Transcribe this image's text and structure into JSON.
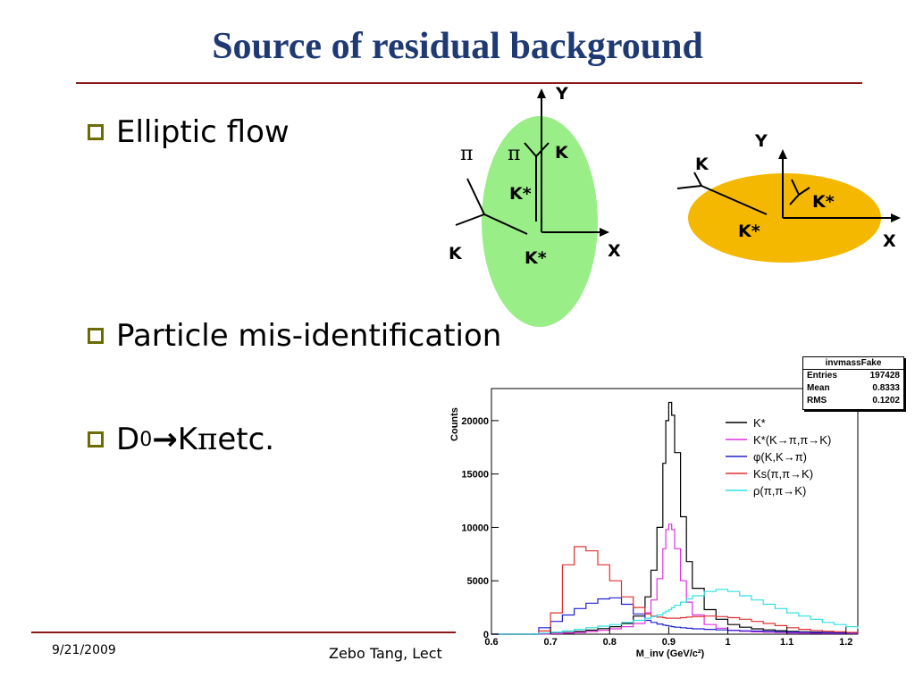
{
  "slide": {
    "title": "Source of residual background",
    "bullets": [
      {
        "text": "Elliptic flow"
      },
      {
        "text": "Particle mis-identification"
      },
      {
        "d": "D",
        "sup": "0",
        "arrow": "→",
        "k": "K",
        "pi": "π",
        "rest": " etc."
      }
    ],
    "footer": {
      "date": "9/21/2009",
      "author": "Zebo Tang, Lect"
    }
  },
  "diagram_y_ellipse": {
    "fill": "#99EE88",
    "labels": {
      "y": "Y",
      "x": "X",
      "pi1": "π",
      "pi2": "π",
      "k1": "K",
      "kstar1": "K*",
      "k2": "K",
      "kstar2": "K*"
    }
  },
  "diagram_x_ellipse": {
    "fill": "#F5B800",
    "labels": {
      "y": "Y",
      "x": "X",
      "k": "K",
      "kstar1": "K*",
      "kstar2": "K*"
    }
  },
  "stats_box": {
    "title": "invmassFake",
    "rows": [
      {
        "label": "Entries",
        "value": "197428"
      },
      {
        "label": "Mean",
        "value": "0.8333"
      },
      {
        "label": "RMS",
        "value": "0.1202"
      }
    ]
  },
  "chart_data": {
    "type": "line",
    "xlabel": "M_inv (GeV/c²)",
    "ylabel": "Counts",
    "xlim": [
      0.6,
      1.22
    ],
    "ylim": [
      0,
      23000
    ],
    "xticks": [
      "0.6",
      "0.7",
      "0.8",
      "0.9",
      "1",
      "1.1",
      "1.2"
    ],
    "yticks": [
      "0",
      "5000",
      "10000",
      "15000",
      "20000"
    ],
    "legend_position": "top-right",
    "x": [
      0.6,
      0.62,
      0.64,
      0.66,
      0.68,
      0.7,
      0.72,
      0.74,
      0.76,
      0.78,
      0.8,
      0.82,
      0.84,
      0.86,
      0.87,
      0.88,
      0.89,
      0.895,
      0.9,
      0.905,
      0.91,
      0.92,
      0.93,
      0.94,
      0.96,
      0.98,
      1.0,
      1.02,
      1.04,
      1.06,
      1.08,
      1.1,
      1.12,
      1.14,
      1.16,
      1.18,
      1.2,
      1.22
    ],
    "series": [
      {
        "name": "K*",
        "color": "#000000",
        "values": [
          0,
          0,
          0,
          0,
          30,
          80,
          150,
          250,
          380,
          520,
          700,
          1000,
          1700,
          3500,
          6000,
          10000,
          16000,
          20000,
          21700,
          20500,
          17000,
          11000,
          6800,
          4300,
          2300,
          1400,
          900,
          650,
          500,
          400,
          330,
          270,
          230,
          200,
          170,
          150,
          130,
          120
        ]
      },
      {
        "name": "K*(K→π,π→K)",
        "color": "#E030E0",
        "values": [
          0,
          0,
          0,
          0,
          20,
          50,
          90,
          160,
          250,
          360,
          500,
          700,
          1000,
          2000,
          3200,
          5200,
          8000,
          9800,
          10300,
          9800,
          8000,
          5000,
          3000,
          1800,
          900,
          560,
          370,
          270,
          220,
          180,
          150,
          120,
          100,
          90,
          80,
          70,
          60,
          50
        ]
      },
      {
        "name": "φ(K,K→π)",
        "color": "#2020D0",
        "values": [
          0,
          0,
          0,
          0,
          600,
          1200,
          1800,
          2400,
          2900,
          3300,
          3400,
          2800,
          1900,
          1300,
          1100,
          950,
          850,
          800,
          750,
          700,
          650,
          600,
          550,
          500,
          450,
          400,
          350,
          320,
          290,
          260,
          230,
          200,
          180,
          160,
          140,
          120,
          100,
          90
        ]
      },
      {
        "name": "Ks(π,π→K)",
        "color": "#E03030",
        "values": [
          0,
          0,
          0,
          0,
          300,
          2000,
          6500,
          8200,
          7800,
          6500,
          5000,
          3500,
          2500,
          1900,
          1700,
          1600,
          1550,
          1500,
          1500,
          1500,
          1500,
          1550,
          1600,
          1650,
          1700,
          1650,
          1550,
          1400,
          1200,
          1000,
          800,
          600,
          450,
          350,
          280,
          220,
          170,
          130
        ]
      },
      {
        "name": "ρ(π,π→K)",
        "color": "#30E0E0",
        "values": [
          0,
          0,
          0,
          0,
          100,
          200,
          300,
          450,
          600,
          750,
          900,
          1100,
          1300,
          1500,
          1650,
          1800,
          2000,
          2150,
          2300,
          2500,
          2700,
          3000,
          3300,
          3600,
          4000,
          4200,
          4000,
          3600,
          3200,
          2800,
          2400,
          2000,
          1700,
          1400,
          1100,
          900,
          700,
          500
        ]
      }
    ]
  }
}
